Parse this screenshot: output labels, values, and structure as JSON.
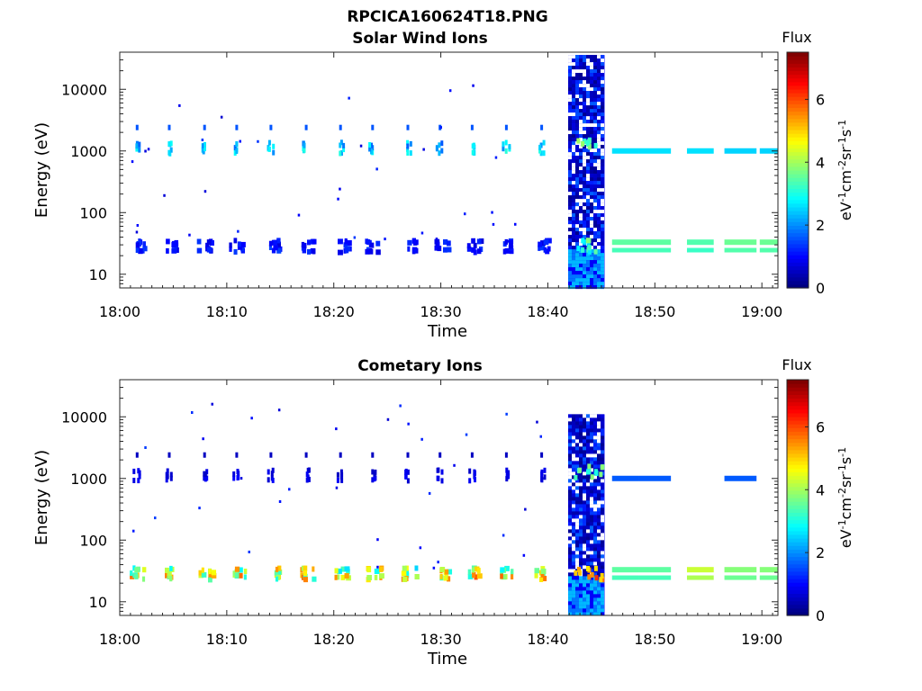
{
  "figure": {
    "title": "RPCICA160624T18.PNG"
  },
  "chart_data": [
    {
      "type": "heatmap",
      "title": "Solar Wind Ions",
      "xlabel": "Time",
      "ylabel": "Energy (eV)",
      "x_ticks": [
        "18:00",
        "18:10",
        "18:20",
        "18:30",
        "18:40",
        "18:50",
        "19:00"
      ],
      "x_range_minutes": [
        0,
        61.5
      ],
      "y_scale": "log",
      "y_ticks": [
        "10",
        "100",
        "1000",
        "10000"
      ],
      "y_range_eV": [
        6,
        40000
      ],
      "colorbar": {
        "title": "Flux",
        "label": "eV-1cm-2sr-1s-1",
        "ticks": [
          "0",
          "2",
          "4",
          "6"
        ],
        "range": [
          0,
          7.5
        ],
        "colormap": "jet"
      },
      "features": {
        "band_energies_eV": [
          25,
          32,
          1000,
          1250,
          2400
        ],
        "sweep_minutes": [
          1.5,
          4.5,
          7.8,
          10.8,
          14.0,
          17.3,
          20.5,
          23.5,
          26.8,
          29.8,
          32.8,
          36.0,
          39.3,
          42.5
        ],
        "low_band_flux": 1.2,
        "high_band_flux": 2.6,
        "burst_window_minutes": [
          41.9,
          45.3
        ],
        "burst_energy_max_eV": 36000,
        "late_segments": [
          {
            "start": 46.0,
            "end": 48.5,
            "low_flux": 3.5,
            "high_flux": 2.6
          },
          {
            "start": 48.5,
            "end": 51.5,
            "low_flux": 3.5,
            "high_flux": 2.6
          },
          {
            "start": 53.0,
            "end": 55.5,
            "low_flux": 3.4,
            "high_flux": 2.6
          },
          {
            "start": 56.5,
            "end": 59.5,
            "low_flux": 3.6,
            "high_flux": 2.5
          },
          {
            "start": 59.8,
            "end": 61.5,
            "low_flux": 3.6,
            "high_flux": 2.5
          }
        ]
      }
    },
    {
      "type": "heatmap",
      "title": "Cometary Ions",
      "xlabel": "Time",
      "ylabel": "Energy (eV)",
      "x_ticks": [
        "18:00",
        "18:10",
        "18:20",
        "18:30",
        "18:40",
        "18:50",
        "19:00"
      ],
      "x_range_minutes": [
        0,
        61.5
      ],
      "y_scale": "log",
      "y_ticks": [
        "10",
        "100",
        "1000",
        "10000"
      ],
      "y_range_eV": [
        6,
        40000
      ],
      "colorbar": {
        "title": "Flux",
        "label": "eV-1cm-2sr-1s-1",
        "ticks": [
          "0",
          "2",
          "4",
          "6"
        ],
        "range": [
          0,
          7.5
        ],
        "colormap": "jet"
      },
      "features": {
        "band_energies_eV": [
          25,
          32,
          1000,
          1250,
          2400
        ],
        "sweep_minutes": [
          1.5,
          4.5,
          7.8,
          10.8,
          14.0,
          17.3,
          20.5,
          23.5,
          26.8,
          29.8,
          32.8,
          36.0,
          39.3,
          42.5
        ],
        "low_band_flux": 5.0,
        "high_band_flux": 0.8,
        "burst_window_minutes": [
          41.9,
          45.3
        ],
        "burst_energy_max_eV": 11000,
        "late_segments": [
          {
            "start": 46.0,
            "end": 48.5,
            "low_flux": 3.5,
            "high_flux": 1.6
          },
          {
            "start": 48.5,
            "end": 51.5,
            "low_flux": 3.5,
            "high_flux": 1.6
          },
          {
            "start": 53.0,
            "end": 55.5,
            "low_flux": 4.3,
            "high_flux": 0
          },
          {
            "start": 56.5,
            "end": 59.5,
            "low_flux": 3.8,
            "high_flux": 1.6
          },
          {
            "start": 59.8,
            "end": 61.5,
            "low_flux": 3.8,
            "high_flux": 0
          }
        ]
      }
    }
  ]
}
